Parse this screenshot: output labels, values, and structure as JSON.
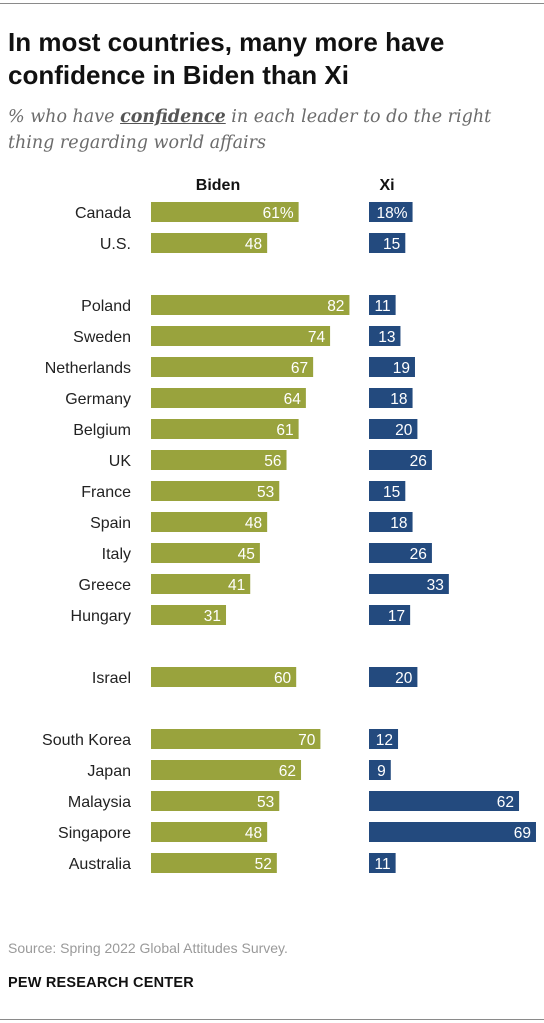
{
  "title": "In most countries, many more have confidence in Biden than Xi",
  "subtitle": {
    "pre": "% who have ",
    "emph": "confidence",
    "post": " in each leader to do the right thing regarding world affairs"
  },
  "source": "Source: Spring 2022 Global Attitudes Survey.",
  "org": "PEW RESEARCH CENTER",
  "colors": {
    "biden": "#99a33d",
    "xi": "#234a7e"
  },
  "chart_data": {
    "type": "bar",
    "orientation": "horizontal",
    "categories": [
      "Canada",
      "U.S.",
      "Poland",
      "Sweden",
      "Netherlands",
      "Germany",
      "Belgium",
      "UK",
      "France",
      "Spain",
      "Italy",
      "Greece",
      "Hungary",
      "Israel",
      "South Korea",
      "Japan",
      "Malaysia",
      "Singapore",
      "Australia"
    ],
    "groups": [
      [
        "Canada",
        "U.S."
      ],
      [
        "Poland",
        "Sweden",
        "Netherlands",
        "Germany",
        "Belgium",
        "UK",
        "France",
        "Spain",
        "Italy",
        "Greece",
        "Hungary"
      ],
      [
        "Israel"
      ],
      [
        "South Korea",
        "Japan",
        "Malaysia",
        "Singapore",
        "Australia"
      ]
    ],
    "series": [
      {
        "name": "Biden",
        "values": [
          61,
          48,
          82,
          74,
          67,
          64,
          61,
          56,
          53,
          48,
          45,
          41,
          31,
          60,
          70,
          62,
          53,
          48,
          52
        ],
        "labels": [
          "61%",
          "48",
          "82",
          "74",
          "67",
          "64",
          "61",
          "56",
          "53",
          "48",
          "45",
          "41",
          "31",
          "60",
          "70",
          "62",
          "53",
          "48",
          "52"
        ]
      },
      {
        "name": "Xi",
        "values": [
          18,
          15,
          11,
          13,
          19,
          18,
          20,
          26,
          15,
          18,
          26,
          33,
          17,
          20,
          12,
          9,
          62,
          69,
          11
        ],
        "labels": [
          "18%",
          "15",
          "11",
          "13",
          "19",
          "18",
          "20",
          "26",
          "15",
          "18",
          "26",
          "33",
          "17",
          "20",
          "12",
          "9",
          "62",
          "69",
          "11"
        ]
      }
    ],
    "unit": "%",
    "xlim": [
      0,
      100
    ]
  }
}
